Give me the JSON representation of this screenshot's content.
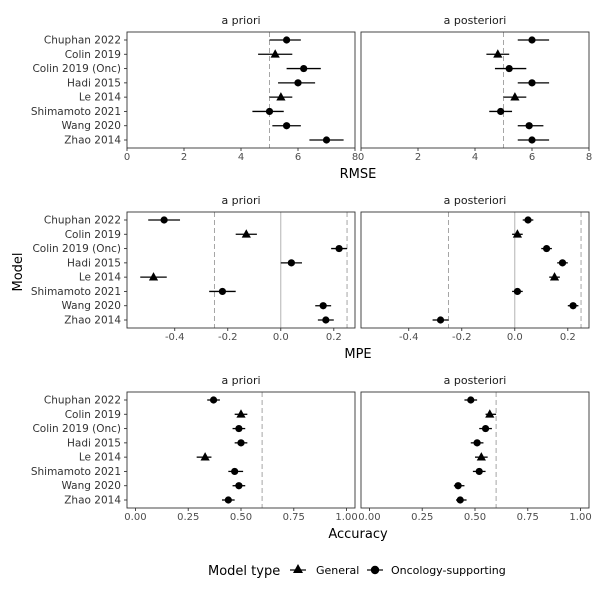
{
  "models": [
    "Chuphan 2022",
    "Colin 2019",
    "Colin 2019 (Onc)",
    "Hadi 2015",
    "Le 2014",
    "Shimamoto 2021",
    "Wang 2020",
    "Zhao 2014"
  ],
  "model_types": [
    "Oncology-supporting",
    "General",
    "Oncology-supporting",
    "Oncology-supporting",
    "General",
    "Oncology-supporting",
    "Oncology-supporting",
    "Oncology-supporting"
  ],
  "y_axis_label": "Model",
  "facets": [
    "a priori",
    "a posteriori"
  ],
  "legend": {
    "title": "Model type",
    "items": [
      {
        "label": "General",
        "shape": "triangle"
      },
      {
        "label": "Oncology-supporting",
        "shape": "circle"
      }
    ]
  },
  "chart_data": [
    {
      "type": "scatter",
      "metric": "RMSE",
      "xlabel": "RMSE",
      "xlim": [
        0,
        8
      ],
      "ticks": [
        0,
        2,
        4,
        6,
        8
      ],
      "tick_labels": [
        "0",
        "2",
        "4",
        "6",
        "8"
      ],
      "vlines_dashed": [
        5.0
      ],
      "vline_solid": null,
      "panels": {
        "a priori": {
          "est": [
            5.6,
            5.2,
            6.2,
            6.0,
            5.4,
            5.0,
            5.6,
            7.0
          ],
          "lo": [
            5.0,
            4.6,
            5.6,
            5.3,
            5.0,
            4.4,
            5.1,
            6.4
          ],
          "hi": [
            6.1,
            5.8,
            6.8,
            6.6,
            5.8,
            5.5,
            6.1,
            7.6
          ]
        },
        "a posteriori": {
          "est": [
            6.0,
            4.8,
            5.2,
            6.0,
            5.4,
            4.9,
            5.9,
            6.0
          ],
          "lo": [
            5.5,
            4.4,
            4.7,
            5.5,
            5.0,
            4.5,
            5.5,
            5.5
          ],
          "hi": [
            6.6,
            5.2,
            5.8,
            6.6,
            5.8,
            5.3,
            6.4,
            6.6
          ]
        }
      }
    },
    {
      "type": "scatter",
      "metric": "MPE",
      "xlabel": "MPE",
      "xlim": [
        -0.58,
        0.28
      ],
      "ticks": [
        -0.4,
        -0.2,
        0.0,
        0.2
      ],
      "tick_labels": [
        "-0.4",
        "-0.2",
        "0.0",
        "0.2"
      ],
      "vlines_dashed": [
        -0.25,
        0.25
      ],
      "vline_solid": 0.0,
      "panels": {
        "a priori": {
          "est": [
            -0.44,
            -0.13,
            0.22,
            0.04,
            -0.48,
            -0.22,
            0.16,
            0.17
          ],
          "lo": [
            -0.5,
            -0.17,
            0.19,
            0.0,
            -0.53,
            -0.27,
            0.13,
            0.14
          ],
          "hi": [
            -0.38,
            -0.09,
            0.25,
            0.08,
            -0.43,
            -0.17,
            0.19,
            0.2
          ]
        },
        "a posteriori": {
          "est": [
            0.05,
            0.01,
            0.12,
            0.18,
            0.15,
            0.01,
            0.22,
            -0.28
          ],
          "lo": [
            0.03,
            -0.01,
            0.1,
            0.16,
            0.13,
            -0.01,
            0.2,
            -0.31
          ],
          "hi": [
            0.07,
            0.03,
            0.14,
            0.2,
            0.17,
            0.03,
            0.24,
            -0.25
          ]
        }
      }
    },
    {
      "type": "scatter",
      "metric": "Accuracy",
      "xlabel": "Accuracy",
      "xlim": [
        -0.04,
        1.04
      ],
      "ticks": [
        0.0,
        0.25,
        0.5,
        0.75,
        1.0
      ],
      "tick_labels": [
        "0.00",
        "0.25",
        "0.50",
        "0.75",
        "1.00"
      ],
      "vlines_dashed": [
        0.6
      ],
      "vline_solid": null,
      "panels": {
        "a priori": {
          "est": [
            0.37,
            0.5,
            0.49,
            0.5,
            0.33,
            0.47,
            0.49,
            0.44
          ],
          "lo": [
            0.34,
            0.47,
            0.46,
            0.47,
            0.29,
            0.44,
            0.46,
            0.41
          ],
          "hi": [
            0.4,
            0.53,
            0.52,
            0.53,
            0.36,
            0.51,
            0.52,
            0.47
          ]
        },
        "a posteriori": {
          "est": [
            0.48,
            0.57,
            0.55,
            0.51,
            0.53,
            0.52,
            0.42,
            0.43
          ],
          "lo": [
            0.45,
            0.55,
            0.52,
            0.48,
            0.5,
            0.49,
            0.4,
            0.41
          ],
          "hi": [
            0.51,
            0.6,
            0.58,
            0.54,
            0.56,
            0.55,
            0.45,
            0.46
          ]
        }
      }
    }
  ]
}
